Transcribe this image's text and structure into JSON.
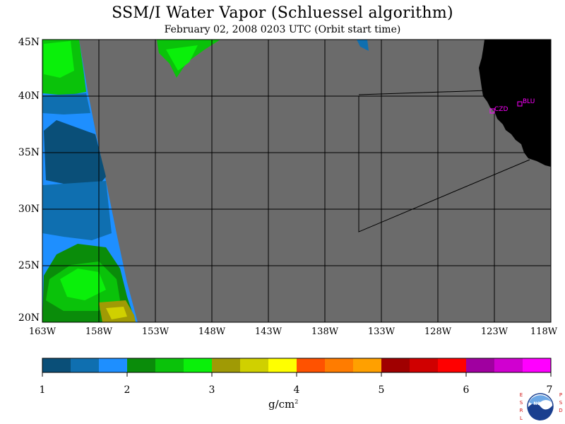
{
  "title": "SSM/I Water Vapor (Schluessel algorithm)",
  "subtitle": "February 02, 2008  0203 UTC  (Orbit start time)",
  "lat_labels": [
    "45N",
    "40N",
    "35N",
    "30N",
    "25N",
    "20N"
  ],
  "lon_labels": [
    "163W",
    "158W",
    "153W",
    "148W",
    "143W",
    "138W",
    "133W",
    "128W",
    "123W",
    "118W"
  ],
  "stations": [
    {
      "code": "CZD",
      "lat": 38.6,
      "lon": -123.2
    },
    {
      "code": "BLU",
      "lat": 39.3,
      "lon": -120.7
    }
  ],
  "colorbar": {
    "ticks": [
      "1",
      "2",
      "3",
      "4",
      "5",
      "6",
      "7"
    ],
    "units": "g/cm",
    "units_exp": "2",
    "colors": [
      "#0a4f78",
      "#0f6fb0",
      "#1e8fff",
      "#0a8c0a",
      "#0ac20a",
      "#0af00a",
      "#a09a05",
      "#d0d000",
      "#ffff00",
      "#ff5200",
      "#ff7c00",
      "#ffa000",
      "#a00000",
      "#d00000",
      "#ff0000",
      "#a000a0",
      "#d000d0",
      "#ff00ff"
    ]
  },
  "map_colors": {
    "land": "#000000",
    "no_data": "#6b6b6b",
    "station": "#ff00ff",
    "grid": "#000000"
  },
  "logo": {
    "left_letters": [
      "E",
      "S",
      "R",
      "L"
    ],
    "right_letters": [
      "P",
      "S",
      "D"
    ],
    "center": "NOAA"
  }
}
